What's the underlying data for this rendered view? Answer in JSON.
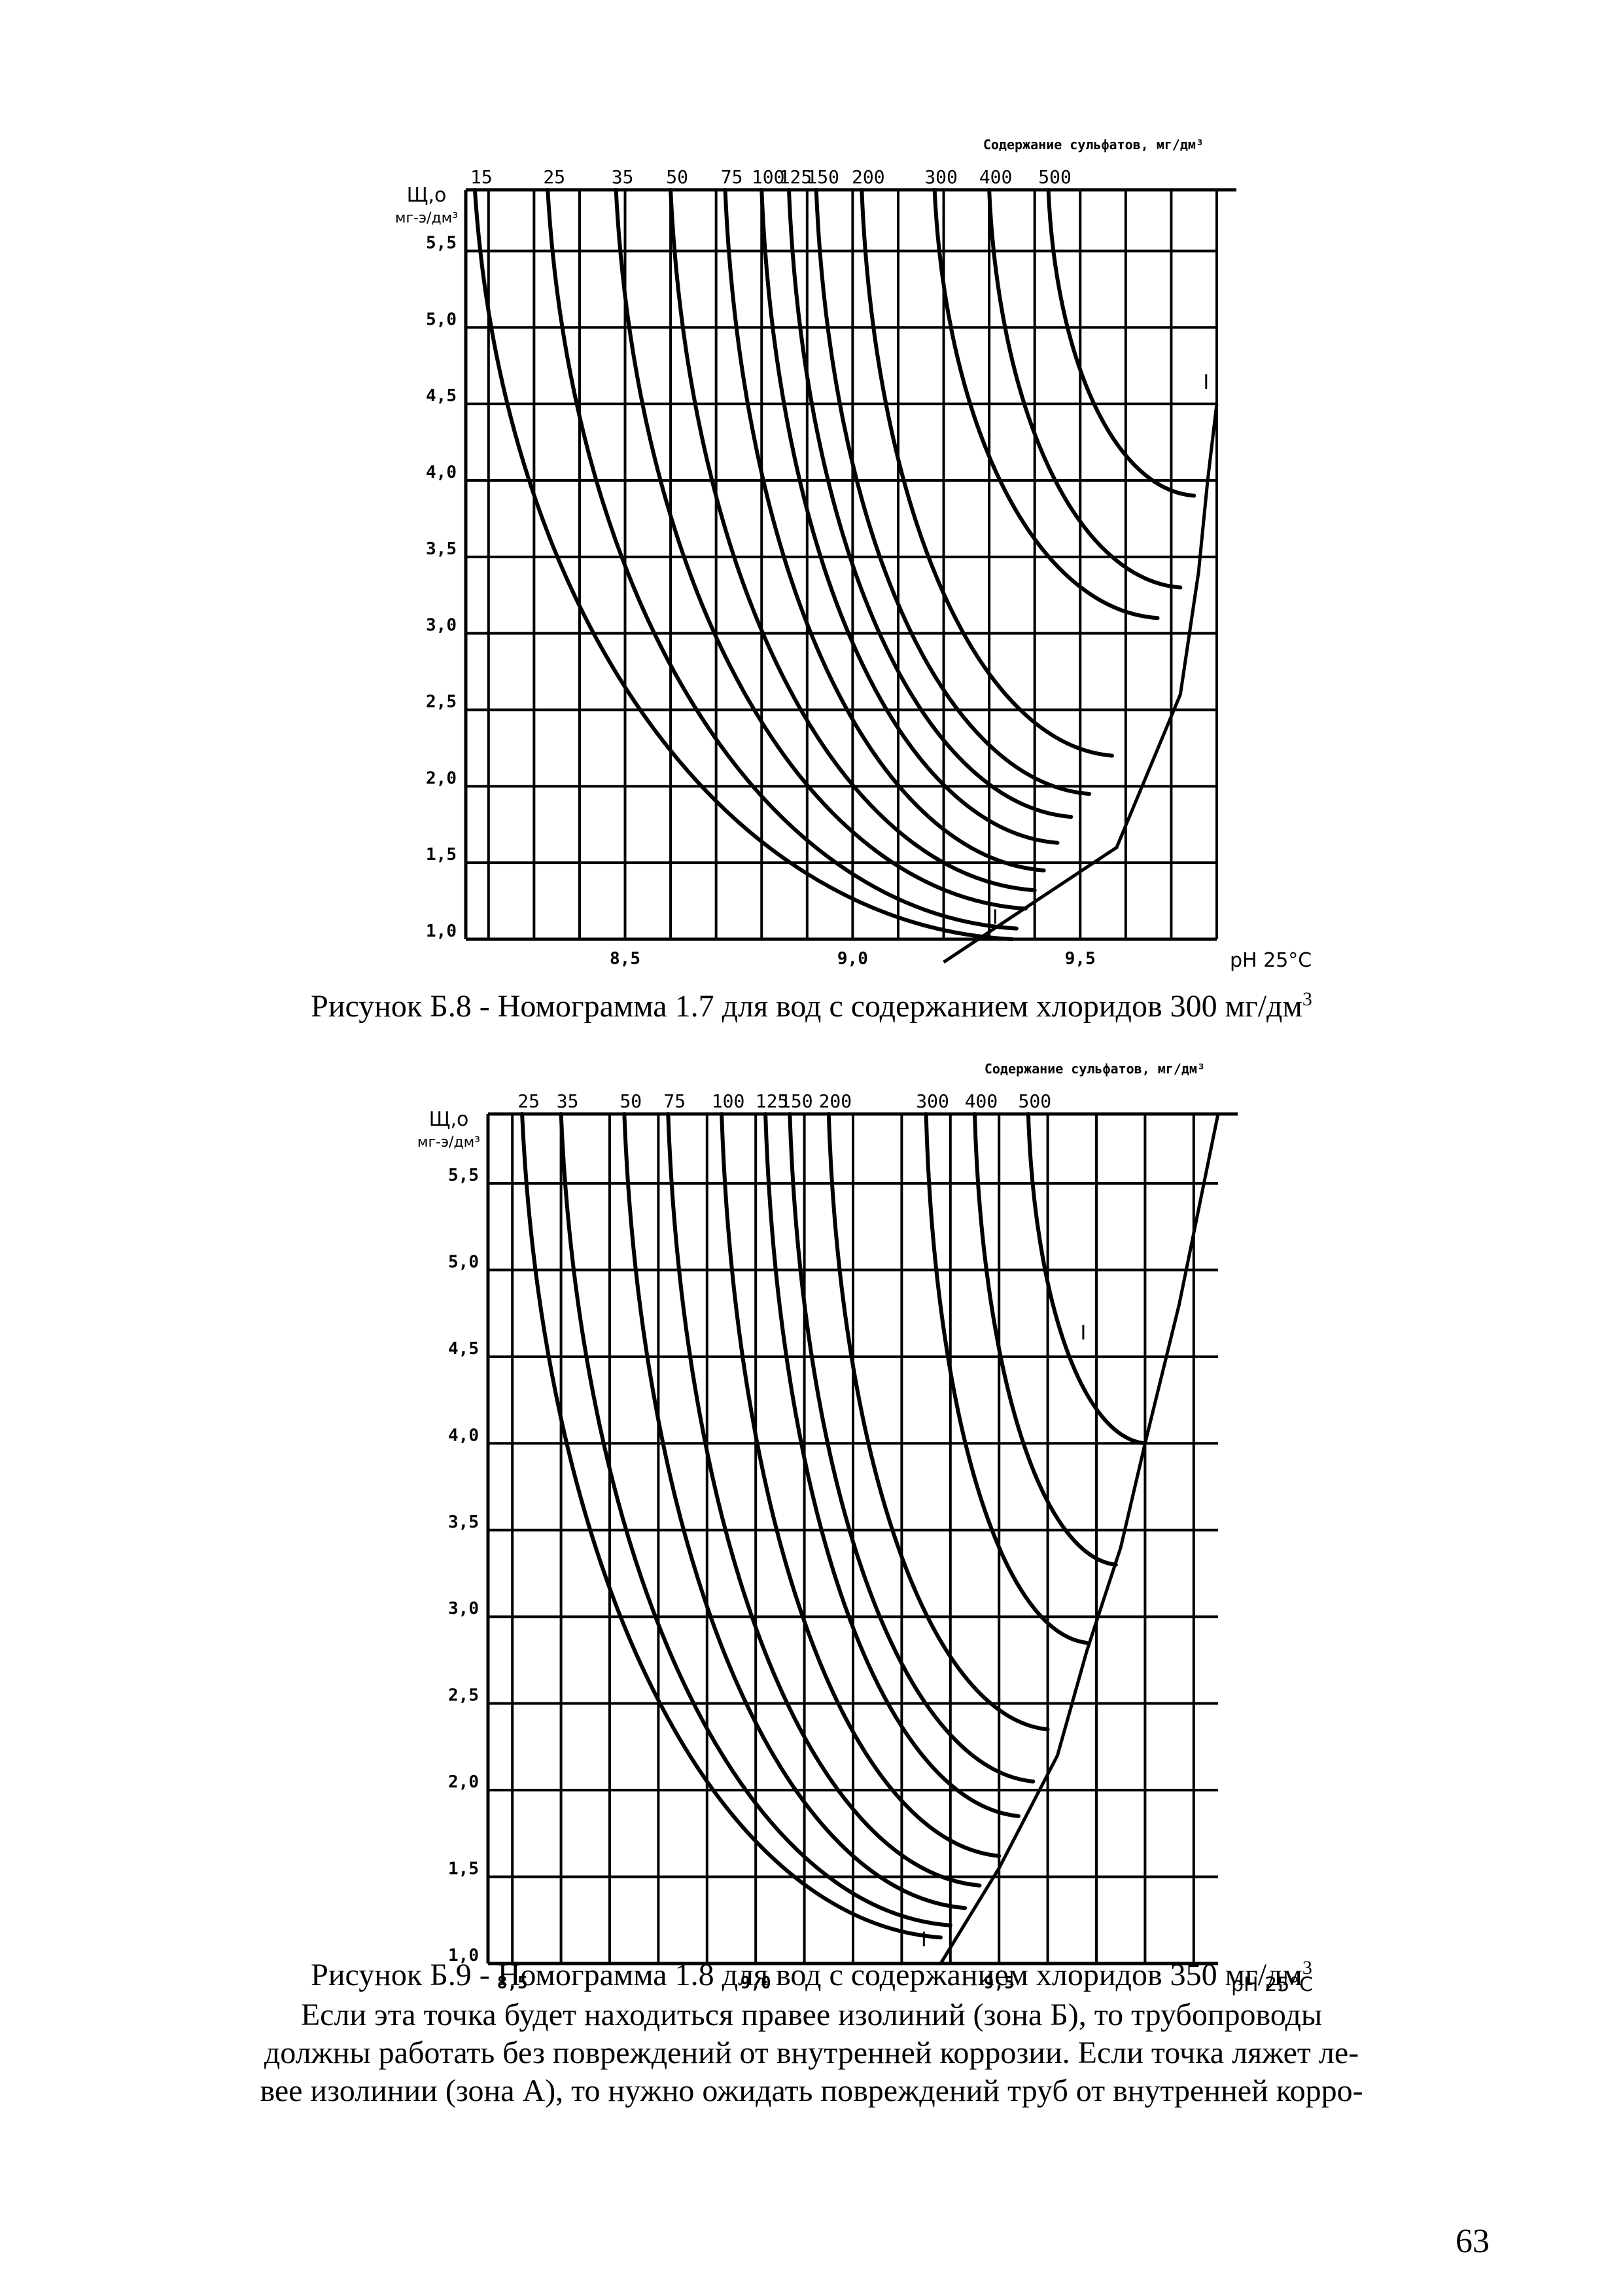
{
  "figures": [
    {
      "caption_text": "Рисунок Б.8 - Номограмма 1.7 для вод с содержанием хлоридов 300 мг/дм",
      "caption_sup": "3",
      "chart_data": {
        "type": "line",
        "title": "Содержание сульфатов, мг/дм³",
        "xlabel": "pH 25°C",
        "ylabel_line1": "Щ,о",
        "ylabel_line2": "мг-э/дм³",
        "xlim": [
          8.15,
          9.8
        ],
        "ylim": [
          1.0,
          5.9
        ],
        "x_ticks": [
          "8,5",
          "9,0",
          "9,5"
        ],
        "x_tick_values": [
          8.5,
          9.0,
          9.5
        ],
        "y_ticks": [
          "1,0",
          "1,5",
          "2,0",
          "2,5",
          "3,0",
          "3,5",
          "4,0",
          "4,5",
          "5,0",
          "5,5"
        ],
        "y_tick_values": [
          1.0,
          1.5,
          2.0,
          2.5,
          3.0,
          3.5,
          4.0,
          4.5,
          5.0,
          5.5
        ],
        "boundary_label": "I",
        "series": [
          {
            "name": "15",
            "top_x": 8.17,
            "bottom_x": 9.35,
            "bottom_y": 1.0
          },
          {
            "name": "25",
            "top_x": 8.33,
            "bottom_x": 9.36,
            "bottom_y": 1.07
          },
          {
            "name": "35",
            "top_x": 8.48,
            "bottom_x": 9.38,
            "bottom_y": 1.2
          },
          {
            "name": "50",
            "top_x": 8.6,
            "bottom_x": 9.4,
            "bottom_y": 1.32
          },
          {
            "name": "75",
            "top_x": 8.72,
            "bottom_x": 9.42,
            "bottom_y": 1.45
          },
          {
            "name": "100",
            "top_x": 8.8,
            "bottom_x": 9.45,
            "bottom_y": 1.63
          },
          {
            "name": "125",
            "top_x": 8.86,
            "bottom_x": 9.48,
            "bottom_y": 1.8
          },
          {
            "name": "150",
            "top_x": 8.92,
            "bottom_x": 9.52,
            "bottom_y": 1.95
          },
          {
            "name": "200",
            "top_x": 9.02,
            "bottom_x": 9.57,
            "bottom_y": 2.2
          },
          {
            "name": "300",
            "top_x": 9.18,
            "bottom_x": 9.67,
            "bottom_y": 3.1
          },
          {
            "name": "400",
            "top_x": 9.3,
            "bottom_x": 9.72,
            "bottom_y": 3.3
          },
          {
            "name": "500",
            "top_x": 9.43,
            "bottom_x": 9.75,
            "bottom_y": 3.9
          }
        ],
        "boundary": [
          [
            9.2,
            0.85
          ],
          [
            9.58,
            1.6
          ],
          [
            9.72,
            2.6
          ],
          [
            9.76,
            3.4
          ],
          [
            9.78,
            4.0
          ],
          [
            9.8,
            4.5
          ]
        ]
      }
    },
    {
      "caption_text": "Рисунок Б.9 - Номограмма 1.8 для вод с содержанием хлоридов 350 мг/дм",
      "caption_sup": "3",
      "chart_data": {
        "type": "line",
        "title": "Содержание сульфатов, мг/дм³",
        "xlabel": "pH 25°C",
        "ylabel_line1": "Щ,о",
        "ylabel_line2": "мг-э/дм³",
        "xlim": [
          8.45,
          9.95
        ],
        "ylim": [
          1.0,
          5.9
        ],
        "x_ticks": [
          "8,5",
          "9,0",
          "9,5"
        ],
        "x_tick_values": [
          8.5,
          9.0,
          9.5
        ],
        "y_ticks": [
          "1,0",
          "1,5",
          "2,0",
          "2,5",
          "3,0",
          "3,5",
          "4,0",
          "4,5",
          "5,0",
          "5,5"
        ],
        "y_tick_values": [
          1.0,
          1.5,
          2.0,
          2.5,
          3.0,
          3.5,
          4.0,
          4.5,
          5.0,
          5.5
        ],
        "boundary_label": "I",
        "series": [
          {
            "name": "25",
            "top_x": 8.52,
            "bottom_x": 9.38,
            "bottom_y": 1.15
          },
          {
            "name": "35",
            "top_x": 8.6,
            "bottom_x": 9.4,
            "bottom_y": 1.22
          },
          {
            "name": "50",
            "top_x": 8.73,
            "bottom_x": 9.43,
            "bottom_y": 1.32
          },
          {
            "name": "75",
            "top_x": 8.82,
            "bottom_x": 9.46,
            "bottom_y": 1.45
          },
          {
            "name": "100",
            "top_x": 8.93,
            "bottom_x": 9.5,
            "bottom_y": 1.62
          },
          {
            "name": "125",
            "top_x": 9.02,
            "bottom_x": 9.54,
            "bottom_y": 1.85
          },
          {
            "name": "150",
            "top_x": 9.07,
            "bottom_x": 9.57,
            "bottom_y": 2.05
          },
          {
            "name": "200",
            "top_x": 9.15,
            "bottom_x": 9.6,
            "bottom_y": 2.35
          },
          {
            "name": "300",
            "top_x": 9.35,
            "bottom_x": 9.68,
            "bottom_y": 2.85
          },
          {
            "name": "400",
            "top_x": 9.45,
            "bottom_x": 9.74,
            "bottom_y": 3.3
          },
          {
            "name": "500",
            "top_x": 9.56,
            "bottom_x": 9.8,
            "bottom_y": 4.0
          }
        ],
        "boundary": [
          [
            9.38,
            1.0
          ],
          [
            9.5,
            1.55
          ],
          [
            9.62,
            2.2
          ],
          [
            9.68,
            2.8
          ],
          [
            9.75,
            3.4
          ],
          [
            9.8,
            4.0
          ],
          [
            9.87,
            4.8
          ],
          [
            9.95,
            5.9
          ]
        ]
      }
    }
  ],
  "paragraph_lines": [
    "Если эта точка будет находиться правее изолиний (зона Б), то трубопроводы",
    "должны работать без повреждений от внутренней коррозии. Если точка ляжет ле-",
    "вее изолинии (зона А), то нужно ожидать повреждений труб от внутренней корро-"
  ],
  "page_number": "63"
}
